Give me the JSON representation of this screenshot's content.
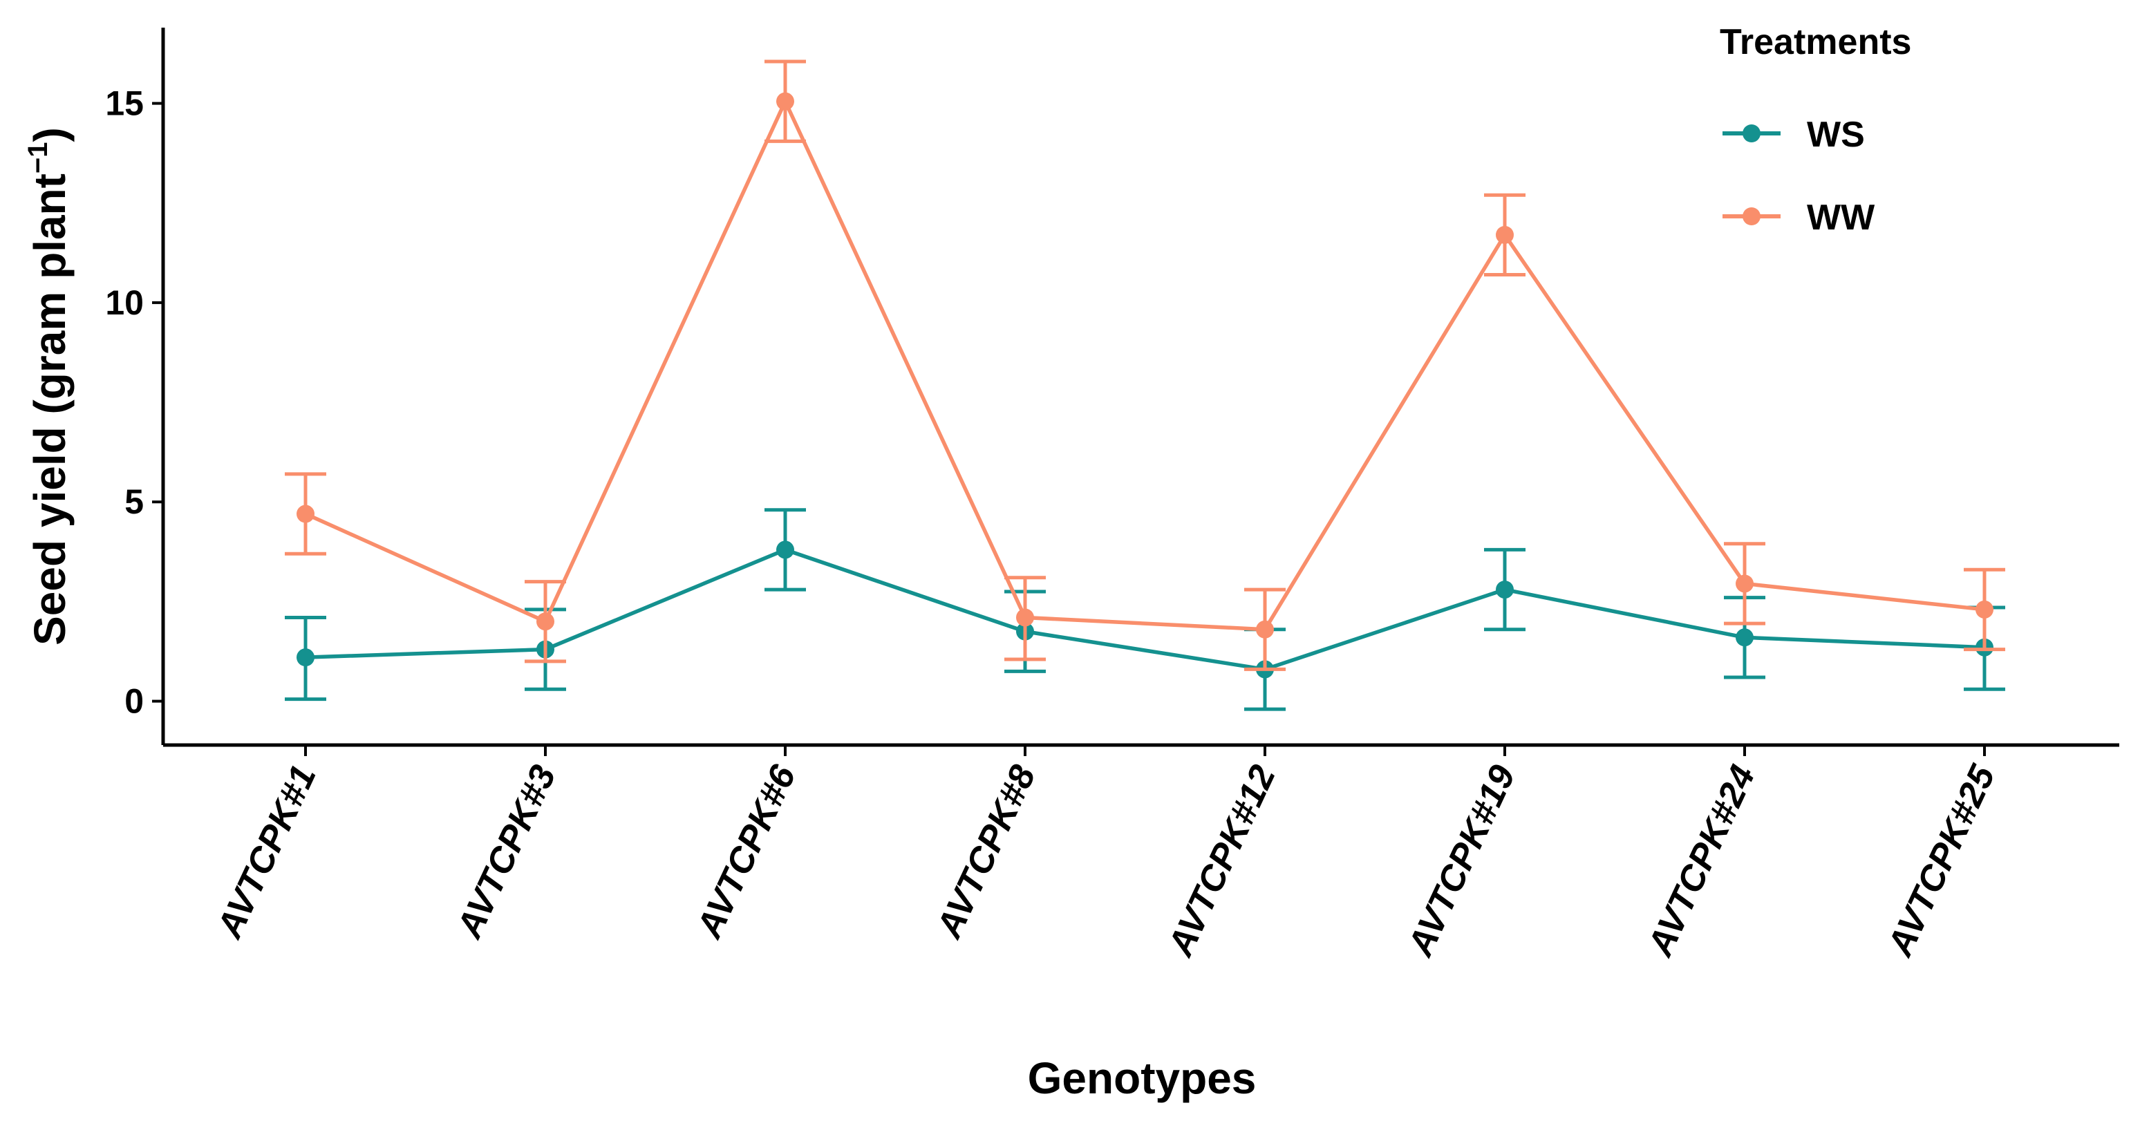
{
  "chart_data": {
    "type": "line",
    "xlabel": "Genotypes",
    "ylabel": "Seed yield (gram plant",
    "ylabel_superscript": "−1",
    "ylabel_close": ")",
    "categories": [
      "AVTCPK#1",
      "AVTCPK#3",
      "AVTCPK#6",
      "AVTCPK#8",
      "AVTCPK#12",
      "AVTCPK#19",
      "AVTCPK#24",
      "AVTCPK#25"
    ],
    "y_ticks": [
      0,
      5,
      10,
      15
    ],
    "y_tick_labels": [
      "0",
      "5",
      "10",
      "15"
    ],
    "ylim": [
      -1.1,
      16.9
    ],
    "grid": false,
    "legend": {
      "title": "Treatments",
      "placement": "top-right"
    },
    "series": [
      {
        "name": "WS",
        "color": "#14918f",
        "values": [
          1.1,
          1.3,
          3.8,
          1.75,
          0.8,
          2.8,
          1.6,
          1.35
        ],
        "err_low": [
          0.05,
          0.3,
          2.8,
          0.75,
          -0.2,
          1.8,
          0.6,
          0.3
        ],
        "err_high": [
          2.1,
          2.3,
          4.8,
          2.75,
          1.8,
          3.8,
          2.6,
          2.35
        ]
      },
      {
        "name": "WW",
        "color": "#f98e6b",
        "values": [
          4.7,
          2.0,
          15.05,
          2.1,
          1.8,
          11.7,
          2.95,
          2.3
        ],
        "err_low": [
          3.7,
          1.0,
          14.05,
          1.05,
          0.8,
          10.7,
          1.95,
          1.3
        ],
        "err_high": [
          5.7,
          3.0,
          16.05,
          3.1,
          2.8,
          12.7,
          3.95,
          3.3
        ]
      }
    ]
  }
}
